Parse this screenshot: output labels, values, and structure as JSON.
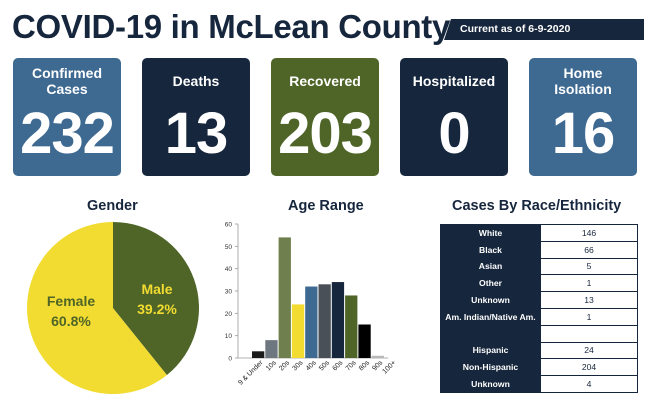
{
  "header": {
    "title": "COVID-19 in McLean County",
    "date_tag": "Current as of 6-9-2020"
  },
  "stats": [
    {
      "label": "Confirmed Cases",
      "value": "232",
      "color": "#3e6a92"
    },
    {
      "label": "Deaths",
      "value": "13",
      "color": "#16263c"
    },
    {
      "label": "Recovered",
      "value": "203",
      "color": "#4f6527"
    },
    {
      "label": "Hospitalized",
      "value": "0",
      "color": "#16263c"
    },
    {
      "label": "Home Isolation",
      "value": "16",
      "color": "#3e6a92"
    }
  ],
  "gender": {
    "title": "Gender"
  },
  "age": {
    "title": "Age Range"
  },
  "race": {
    "title": "Cases By Race/Ethnicity",
    "rows": [
      {
        "label": "White",
        "value": "146"
      },
      {
        "label": "Black",
        "value": "66"
      },
      {
        "label": "Asian",
        "value": "5"
      },
      {
        "label": "Other",
        "value": "1"
      },
      {
        "label": "Unknown",
        "value": "13"
      },
      {
        "label": "Am. Indian/Native Am.",
        "value": "1"
      },
      {
        "label": "",
        "value": ""
      },
      {
        "label": "Hispanic",
        "value": "24"
      },
      {
        "label": "Non-Hispanic",
        "value": "204"
      },
      {
        "label": "Unknown",
        "value": "4"
      }
    ]
  },
  "chart_data": [
    {
      "type": "pie",
      "title": "Gender",
      "categories": [
        "Female",
        "Male"
      ],
      "values": [
        60.8,
        39.2
      ],
      "labels": [
        "60.8%",
        "39.2%"
      ],
      "colors": [
        "#f2dc31",
        "#4f6527"
      ],
      "label_colors": [
        "#4f6527",
        "#f2dc31"
      ]
    },
    {
      "type": "bar",
      "title": "Age Range",
      "categories": [
        "9 & Under",
        "10s",
        "20s",
        "30s",
        "40s",
        "50s",
        "60s",
        "70s",
        "80s",
        "90s",
        "100+"
      ],
      "values": [
        3,
        8,
        54,
        24,
        32,
        33,
        34,
        28,
        15,
        1,
        0
      ],
      "colors": [
        "#1a1a1a",
        "#6e7680",
        "#6f7f4d",
        "#f2dc31",
        "#3e6a92",
        "#4a5058",
        "#16263c",
        "#4f6527",
        "#000000",
        "#b8b8b8",
        "#b8b8b8"
      ],
      "ylim": [
        0,
        60
      ],
      "yticks": [
        0,
        10,
        20,
        30,
        40,
        50,
        60
      ],
      "grid": false
    }
  ]
}
